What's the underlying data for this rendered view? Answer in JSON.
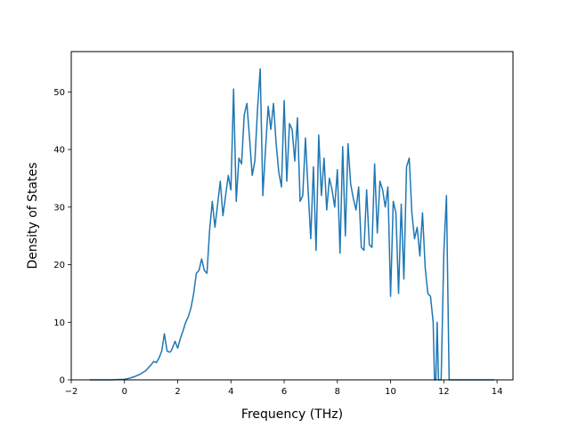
{
  "chart_data": {
    "type": "line",
    "xlabel": "Frequency (THz)",
    "ylabel": "Density of States",
    "xlim": [
      -2,
      14.6
    ],
    "ylim": [
      0,
      57
    ],
    "xticks": [
      -2,
      0,
      2,
      4,
      6,
      8,
      10,
      12,
      14
    ],
    "yticks": [
      0,
      10,
      20,
      30,
      40,
      50
    ],
    "xtick_labels": [
      "−2",
      "0",
      "2",
      "4",
      "6",
      "8",
      "10",
      "12",
      "14"
    ],
    "ytick_labels": [
      "0",
      "10",
      "20",
      "30",
      "40",
      "50"
    ],
    "grid": false,
    "line_color": "#1f77b4",
    "series": [
      {
        "x": [
          -1.3,
          -1.0,
          -0.5,
          0.0,
          0.2,
          0.4,
          0.6,
          0.8,
          1.0,
          1.1,
          1.2,
          1.3,
          1.4,
          1.5,
          1.6,
          1.7,
          1.75,
          1.8,
          1.9,
          2.0,
          2.1,
          2.2,
          2.3,
          2.4,
          2.5,
          2.6,
          2.7,
          2.8,
          2.9,
          3.0,
          3.1,
          3.2,
          3.3,
          3.4,
          3.5,
          3.6,
          3.7,
          3.8,
          3.9,
          4.0,
          4.1,
          4.2,
          4.3,
          4.4,
          4.5,
          4.6,
          4.7,
          4.8,
          4.9,
          5.0,
          5.1,
          5.2,
          5.3,
          5.4,
          5.5,
          5.6,
          5.7,
          5.8,
          5.9,
          6.0,
          6.1,
          6.2,
          6.3,
          6.4,
          6.5,
          6.6,
          6.7,
          6.8,
          6.9,
          7.0,
          7.1,
          7.2,
          7.3,
          7.4,
          7.5,
          7.6,
          7.7,
          7.8,
          7.9,
          8.0,
          8.1,
          8.2,
          8.3,
          8.4,
          8.5,
          8.6,
          8.7,
          8.8,
          8.9,
          9.0,
          9.1,
          9.2,
          9.3,
          9.4,
          9.5,
          9.6,
          9.7,
          9.8,
          9.9,
          10.0,
          10.1,
          10.2,
          10.3,
          10.4,
          10.5,
          10.6,
          10.7,
          10.8,
          10.9,
          11.0,
          11.1,
          11.2,
          11.3,
          11.4,
          11.5,
          11.6,
          11.65,
          11.7,
          11.75,
          11.8,
          11.9,
          12.0,
          12.1,
          12.2,
          12.3,
          12.5,
          13.0,
          13.9
        ],
        "y": [
          0,
          0,
          0,
          0.1,
          0.3,
          0.6,
          1.0,
          1.6,
          2.6,
          3.2,
          3.0,
          3.8,
          5.0,
          8.0,
          5.0,
          4.8,
          5.0,
          5.5,
          6.7,
          5.5,
          7.2,
          8.5,
          10.0,
          11.0,
          12.5,
          15.0,
          18.5,
          19.0,
          21.0,
          19.0,
          18.5,
          26.0,
          31.0,
          26.5,
          30.5,
          34.5,
          28.5,
          32.0,
          35.5,
          33.0,
          50.5,
          31.0,
          38.5,
          37.5,
          46.0,
          48.0,
          42.0,
          35.5,
          38.0,
          47.0,
          54.0,
          32.0,
          40.0,
          47.5,
          43.5,
          48.0,
          41.0,
          36.0,
          33.5,
          48.5,
          34.5,
          44.5,
          43.5,
          38.0,
          45.5,
          31.0,
          32.0,
          42.0,
          33.0,
          24.5,
          37.0,
          22.5,
          42.5,
          32.0,
          38.5,
          29.5,
          35.0,
          33.0,
          30.0,
          36.5,
          22.0,
          40.5,
          25.0,
          41.0,
          34.0,
          31.5,
          29.5,
          33.5,
          23.0,
          22.5,
          33.0,
          23.5,
          23.0,
          37.5,
          25.5,
          34.5,
          33.0,
          30.0,
          33.5,
          14.5,
          31.0,
          29.0,
          15.0,
          30.5,
          17.5,
          37.0,
          38.5,
          29.0,
          24.5,
          26.5,
          21.5,
          29.0,
          19.5,
          15.0,
          14.5,
          10.0,
          0,
          0,
          10.0,
          0,
          0,
          22.0,
          32.0,
          0,
          0,
          0,
          0,
          0
        ]
      }
    ]
  }
}
